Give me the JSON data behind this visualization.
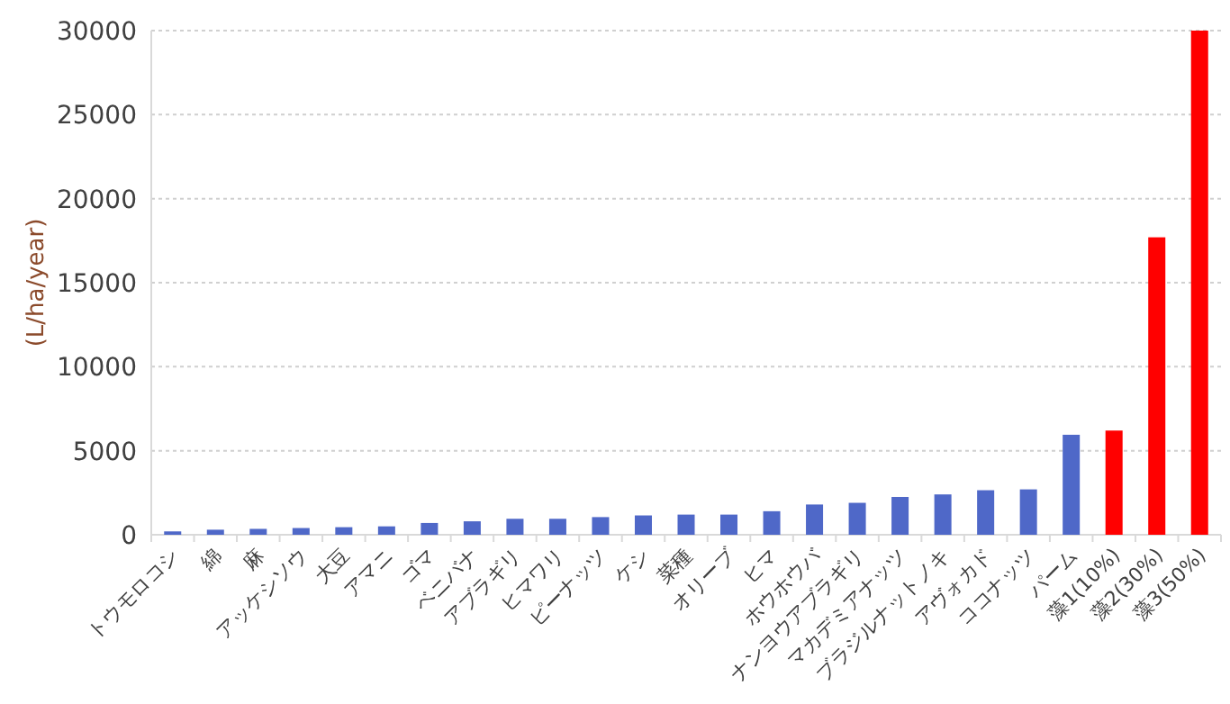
{
  "chart_data": {
    "type": "bar",
    "ylabel": "(L/ha/year)",
    "categories": [
      "トウモロコシ",
      "綿",
      "麻",
      "アッケシソウ",
      "大豆",
      "アマニ",
      "ゴマ",
      "ベニバナ",
      "アブラギリ",
      "ヒマワリ",
      "ピーナッツ",
      "ケシ",
      "菜種",
      "オリーブ",
      "ヒマ",
      "ホウホウバ",
      "ナンヨウアブラギリ",
      "マカデミアナッツ",
      "ブラジルナットノキ",
      "アヴォカド",
      "ココナッツ",
      "パーム",
      "藻1(10%)",
      "藻2(30%)",
      "藻3(50%)"
    ],
    "values": [
      200,
      300,
      350,
      400,
      450,
      500,
      700,
      800,
      950,
      950,
      1050,
      1150,
      1200,
      1200,
      1400,
      1800,
      1900,
      2250,
      2400,
      2650,
      2700,
      5950,
      6200,
      17700,
      30000
    ],
    "colors": [
      "#4f68c8",
      "#4f68c8",
      "#4f68c8",
      "#4f68c8",
      "#4f68c8",
      "#4f68c8",
      "#4f68c8",
      "#4f68c8",
      "#4f68c8",
      "#4f68c8",
      "#4f68c8",
      "#4f68c8",
      "#4f68c8",
      "#4f68c8",
      "#4f68c8",
      "#4f68c8",
      "#4f68c8",
      "#4f68c8",
      "#4f68c8",
      "#4f68c8",
      "#4f68c8",
      "#4f68c8",
      "#ff0000",
      "#ff0000",
      "#ff0000"
    ],
    "ylim": [
      0,
      30000
    ],
    "yticks": [
      0,
      5000,
      10000,
      15000,
      20000,
      25000,
      30000
    ],
    "grid": "y"
  }
}
